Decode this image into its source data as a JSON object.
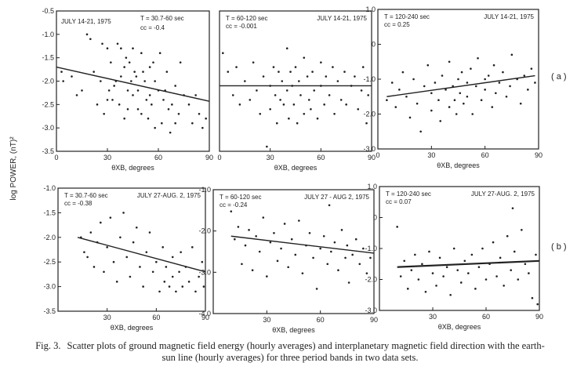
{
  "ylabel": "log POWER, (nT)²",
  "row_labels": [
    "( a )",
    "( b )"
  ],
  "caption": {
    "label": "Fig. 3.",
    "text": "Scatter plots of ground magnetic field energy (hourly averages) and interplanetary magnetic field direction with the earth-sun line (hourly averages) for three period bands in two data sets."
  },
  "chart_data": [
    {
      "type": "scatter",
      "row": "a",
      "title": "JULY 14-21, 1975",
      "period": "T = 30.7-60 sec",
      "cc": "cc = -0.4",
      "xlabel": "θXB, degrees",
      "xlim": [
        0,
        90
      ],
      "ylim": [
        -3.5,
        -0.5
      ],
      "x_ticks": [
        "0",
        "30",
        "60",
        "90"
      ],
      "y_ticks": [
        "-0.5",
        "-1.0",
        "-1.5",
        "-2.0",
        "-2.5",
        "-3.0",
        "-3.5"
      ],
      "fit": {
        "x": [
          0,
          90
        ],
        "y": [
          -1.7,
          -2.43
        ]
      },
      "points": {
        "x": [
          3,
          4,
          9,
          12,
          15,
          18,
          20,
          22,
          24,
          26,
          27,
          28,
          30,
          30,
          31,
          32,
          33,
          34,
          35,
          36,
          37,
          38,
          38,
          40,
          40,
          41,
          42,
          42,
          43,
          44,
          45,
          45,
          46,
          47,
          48,
          48,
          50,
          50,
          51,
          52,
          53,
          54,
          55,
          55,
          56,
          57,
          58,
          58,
          60,
          61,
          62,
          63,
          64,
          65,
          66,
          67,
          68,
          70,
          70,
          72,
          73,
          75,
          78,
          80,
          82,
          84,
          86,
          88
        ],
        "y": [
          -1.8,
          -2.0,
          -1.9,
          -2.3,
          -2.2,
          -1.0,
          -1.1,
          -1.8,
          -2.5,
          -2.0,
          -1.2,
          -2.7,
          -2.4,
          -1.3,
          -2.2,
          -1.6,
          -2.4,
          -2.1,
          -2.0,
          -1.2,
          -2.5,
          -1.3,
          -1.9,
          -1.7,
          -2.8,
          -1.5,
          -2.2,
          -2.6,
          -1.6,
          -2.0,
          -1.3,
          -2.3,
          -1.8,
          -1.9,
          -2.6,
          -2.2,
          -1.4,
          -2.7,
          -1.8,
          -2.0,
          -2.4,
          -2.8,
          -1.7,
          -2.3,
          -2.5,
          -1.6,
          -2.0,
          -3.0,
          -2.2,
          -1.4,
          -2.9,
          -2.4,
          -2.2,
          -1.8,
          -2.6,
          -3.1,
          -2.5,
          -2.1,
          -2.9,
          -2.7,
          -1.6,
          -2.3,
          -2.5,
          -2.9,
          -2.3,
          -2.7,
          -3.0,
          -2.8
        ]
      }
    },
    {
      "type": "scatter",
      "row": "a",
      "title": "JULY 14-21, 1975",
      "period": "T = 60-120 sec",
      "cc": "cc = -0.001",
      "xlabel": "θXB, degrees",
      "xlim": [
        0,
        90
      ],
      "ylim": [
        -3.0,
        0
      ],
      "x_ticks": [
        "0",
        "30",
        "60",
        "90"
      ],
      "y_ticks": [],
      "fit": {
        "x": [
          0,
          90
        ],
        "y": [
          -1.6,
          -1.6
        ]
      },
      "points": {
        "x": [
          2,
          5,
          8,
          10,
          12,
          15,
          18,
          20,
          22,
          24,
          26,
          28,
          30,
          30,
          32,
          33,
          34,
          35,
          36,
          37,
          38,
          40,
          40,
          41,
          42,
          43,
          44,
          45,
          46,
          47,
          48,
          50,
          50,
          52,
          53,
          54,
          55,
          56,
          58,
          60,
          60,
          62,
          63,
          65,
          67,
          68,
          70,
          72,
          74,
          75,
          78,
          80,
          82,
          84,
          85,
          87,
          88
        ],
        "y": [
          -0.9,
          -1.3,
          -1.8,
          -1.2,
          -2.0,
          -1.5,
          -1.9,
          -1.1,
          -1.7,
          -2.2,
          -1.4,
          -2.9,
          -1.6,
          -2.1,
          -1.2,
          -1.8,
          -2.4,
          -1.3,
          -1.9,
          -1.5,
          -2.0,
          -0.8,
          -1.7,
          -2.3,
          -1.3,
          -1.6,
          -2.0,
          -1.2,
          -2.4,
          -1.5,
          -1.8,
          -1.0,
          -2.2,
          -1.4,
          -1.9,
          -2.1,
          -1.3,
          -1.7,
          -2.3,
          -1.1,
          -1.6,
          -2.0,
          -1.4,
          -1.8,
          -1.2,
          -2.2,
          -1.5,
          -1.9,
          -1.3,
          -2.0,
          -1.6,
          -1.4,
          -2.1,
          -1.7,
          -1.2,
          -2.4,
          -1.8
        ]
      }
    },
    {
      "type": "scatter",
      "row": "a",
      "title": "JULY 14-21, 1975",
      "period": "T = 120-240 sec",
      "cc": "cc = 0.25",
      "xlabel": "θXB, degrees",
      "xlim": [
        0,
        90
      ],
      "ylim": [
        -3.0,
        1.0
      ],
      "x_ticks": [
        "0",
        "30",
        "60",
        "90"
      ],
      "y_ticks": [
        "1.0",
        "0",
        "-1.0",
        "-2.0",
        "-3.0"
      ],
      "fit": {
        "x": [
          5,
          88
        ],
        "y": [
          -1.5,
          -0.9
        ]
      },
      "points": {
        "x": [
          5,
          8,
          10,
          12,
          14,
          16,
          18,
          20,
          22,
          24,
          26,
          28,
          30,
          30,
          32,
          34,
          35,
          36,
          38,
          40,
          40,
          42,
          43,
          44,
          45,
          46,
          47,
          48,
          50,
          50,
          52,
          53,
          55,
          56,
          58,
          60,
          60,
          62,
          64,
          65,
          66,
          68,
          70,
          72,
          74,
          75,
          78,
          80,
          82,
          84,
          86,
          88
        ],
        "y": [
          -1.6,
          -1.1,
          -1.8,
          -1.3,
          -0.8,
          -1.5,
          -2.1,
          -1.0,
          -1.7,
          -2.5,
          -1.2,
          -0.6,
          -1.4,
          -1.9,
          -1.1,
          -1.6,
          -2.2,
          -0.9,
          -1.3,
          -1.8,
          -0.5,
          -1.2,
          -1.6,
          -2.0,
          -1.0,
          -1.4,
          -0.8,
          -1.7,
          -1.1,
          -1.5,
          -0.7,
          -2.0,
          -1.2,
          -0.4,
          -1.6,
          -1.0,
          -1.3,
          -0.9,
          -1.8,
          -0.6,
          -1.4,
          -1.1,
          -0.8,
          -1.5,
          -1.2,
          -0.3,
          -1.0,
          -1.7,
          -0.9,
          -1.3,
          -0.7,
          -1.1
        ]
      }
    },
    {
      "type": "scatter",
      "row": "b",
      "title": "JULY 27-AUG. 2, 1975",
      "period": "T = 30.7-60 sec",
      "cc": "cc = -0.38",
      "xlabel": "θXB, degrees",
      "xlim": [
        0,
        90
      ],
      "ylim": [
        -3.5,
        -1.0
      ],
      "x_ticks": [
        "30",
        "60",
        "90"
      ],
      "y_ticks": [
        "-1.0",
        "-1.5",
        "-2.0",
        "-2.5",
        "-3.0",
        "-3.5"
      ],
      "fit": {
        "x": [
          12,
          90
        ],
        "y": [
          -2.0,
          -2.7
        ]
      },
      "points": {
        "x": [
          14,
          16,
          18,
          20,
          22,
          24,
          26,
          28,
          30,
          32,
          34,
          36,
          38,
          40,
          42,
          44,
          46,
          48,
          50,
          52,
          54,
          56,
          58,
          60,
          62,
          64,
          65,
          66,
          68,
          70,
          70,
          72,
          74,
          75,
          76,
          78,
          80,
          82,
          84,
          86,
          88,
          89
        ],
        "y": [
          -2.0,
          -2.3,
          -2.4,
          -1.9,
          -2.6,
          -2.1,
          -1.7,
          -2.7,
          -2.2,
          -1.6,
          -2.5,
          -2.9,
          -2.0,
          -1.5,
          -2.4,
          -2.8,
          -2.1,
          -1.8,
          -2.6,
          -3.0,
          -2.3,
          -1.9,
          -2.7,
          -2.5,
          -3.1,
          -2.2,
          -2.9,
          -2.6,
          -3.0,
          -2.4,
          -2.8,
          -3.1,
          -2.7,
          -2.3,
          -3.0,
          -2.6,
          -2.9,
          -2.2,
          -3.1,
          -2.8,
          -2.5,
          -3.0
        ]
      }
    },
    {
      "type": "scatter",
      "row": "b",
      "title": "JULY 27 - AUG 2, 1975",
      "period": "T = 60-120 sec",
      "cc": "cc = -0.24",
      "xlabel": "θXB, degrees",
      "xlim": [
        0,
        90
      ],
      "ylim": [
        -4.0,
        0
      ],
      "x_ticks": [
        "30",
        "60",
        "90"
      ],
      "y_ticks": [
        "-1.0",
        "-2.0",
        "-3.0",
        "-4.0"
      ],
      "fit": {
        "x": [
          10,
          90
        ],
        "y": [
          -1.5,
          -2.05
        ]
      },
      "points": {
        "x": [
          10,
          12,
          14,
          16,
          18,
          20,
          22,
          24,
          26,
          28,
          30,
          32,
          34,
          36,
          38,
          40,
          42,
          44,
          46,
          48,
          50,
          52,
          54,
          56,
          58,
          60,
          62,
          64,
          65,
          66,
          68,
          70,
          72,
          74,
          75,
          76,
          78,
          80,
          82,
          84,
          86,
          88
        ],
        "y": [
          -0.7,
          -1.6,
          -1.2,
          -2.4,
          -1.8,
          -1.3,
          -2.6,
          -1.5,
          -2.0,
          -0.9,
          -2.8,
          -1.7,
          -1.4,
          -2.3,
          -1.9,
          -1.1,
          -2.5,
          -1.6,
          -2.1,
          -1.0,
          -2.7,
          -1.8,
          -1.4,
          -2.2,
          -3.2,
          -1.9,
          -1.5,
          -2.4,
          -0.5,
          -2.0,
          -1.7,
          -2.6,
          -1.3,
          -2.2,
          -1.8,
          -3.0,
          -2.1,
          -1.6,
          -2.4,
          -1.9,
          -2.7,
          -2.2
        ]
      }
    },
    {
      "type": "scatter",
      "row": "b",
      "title": "JULY 27-AUG. 2, 1975",
      "period": "T = 120-240 sec",
      "cc": "cc = 0.07",
      "xlabel": "θXB, degrees",
      "xlim": [
        0,
        90
      ],
      "ylim": [
        -3.0,
        1.0
      ],
      "x_ticks": [
        "30",
        "60",
        "90"
      ],
      "y_ticks": [
        "1.0",
        "0",
        "-1.0",
        "-2.0",
        "-3.0"
      ],
      "fit": {
        "x": [
          10,
          90
        ],
        "y": [
          -1.6,
          -1.4
        ]
      },
      "points": {
        "x": [
          10,
          12,
          14,
          16,
          18,
          20,
          22,
          24,
          26,
          28,
          30,
          32,
          34,
          36,
          38,
          40,
          42,
          44,
          46,
          48,
          50,
          52,
          54,
          56,
          58,
          60,
          62,
          64,
          66,
          68,
          70,
          72,
          74,
          75,
          76,
          78,
          80,
          82,
          84,
          86,
          88,
          89
        ],
        "y": [
          -0.3,
          -1.9,
          -1.4,
          -2.3,
          -1.7,
          -1.2,
          -2.0,
          -1.5,
          -2.4,
          -1.1,
          -1.8,
          -2.2,
          -1.3,
          -1.9,
          -1.6,
          -2.5,
          -1.0,
          -1.7,
          -2.1,
          -1.4,
          -1.8,
          -1.2,
          -2.3,
          -1.6,
          -1.0,
          -2.0,
          -1.5,
          -0.8,
          -1.9,
          -1.3,
          -2.2,
          -0.6,
          -1.7,
          0.3,
          -1.1,
          -2.0,
          -0.4,
          -1.5,
          -1.8,
          -2.6,
          -1.2,
          -2.8
        ]
      }
    }
  ]
}
